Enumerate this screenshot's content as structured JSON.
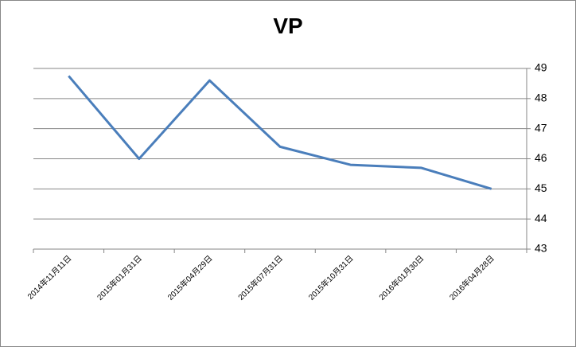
{
  "chart_data": {
    "type": "line",
    "title": "VP",
    "categories": [
      "2014年11月11日",
      "2015年01月31日",
      "2015年04月29日",
      "2015年07月31日",
      "2015年10月31日",
      "2016年01月30日",
      "2016年04月28日"
    ],
    "values": [
      48.75,
      46.0,
      48.6,
      46.4,
      45.8,
      45.7,
      45.0
    ],
    "color": "#4a7ebb",
    "ylim": [
      43,
      49
    ],
    "yticks": [
      43,
      44,
      45,
      46,
      47,
      48,
      49
    ],
    "y_axis_side": "right",
    "grid": true
  }
}
